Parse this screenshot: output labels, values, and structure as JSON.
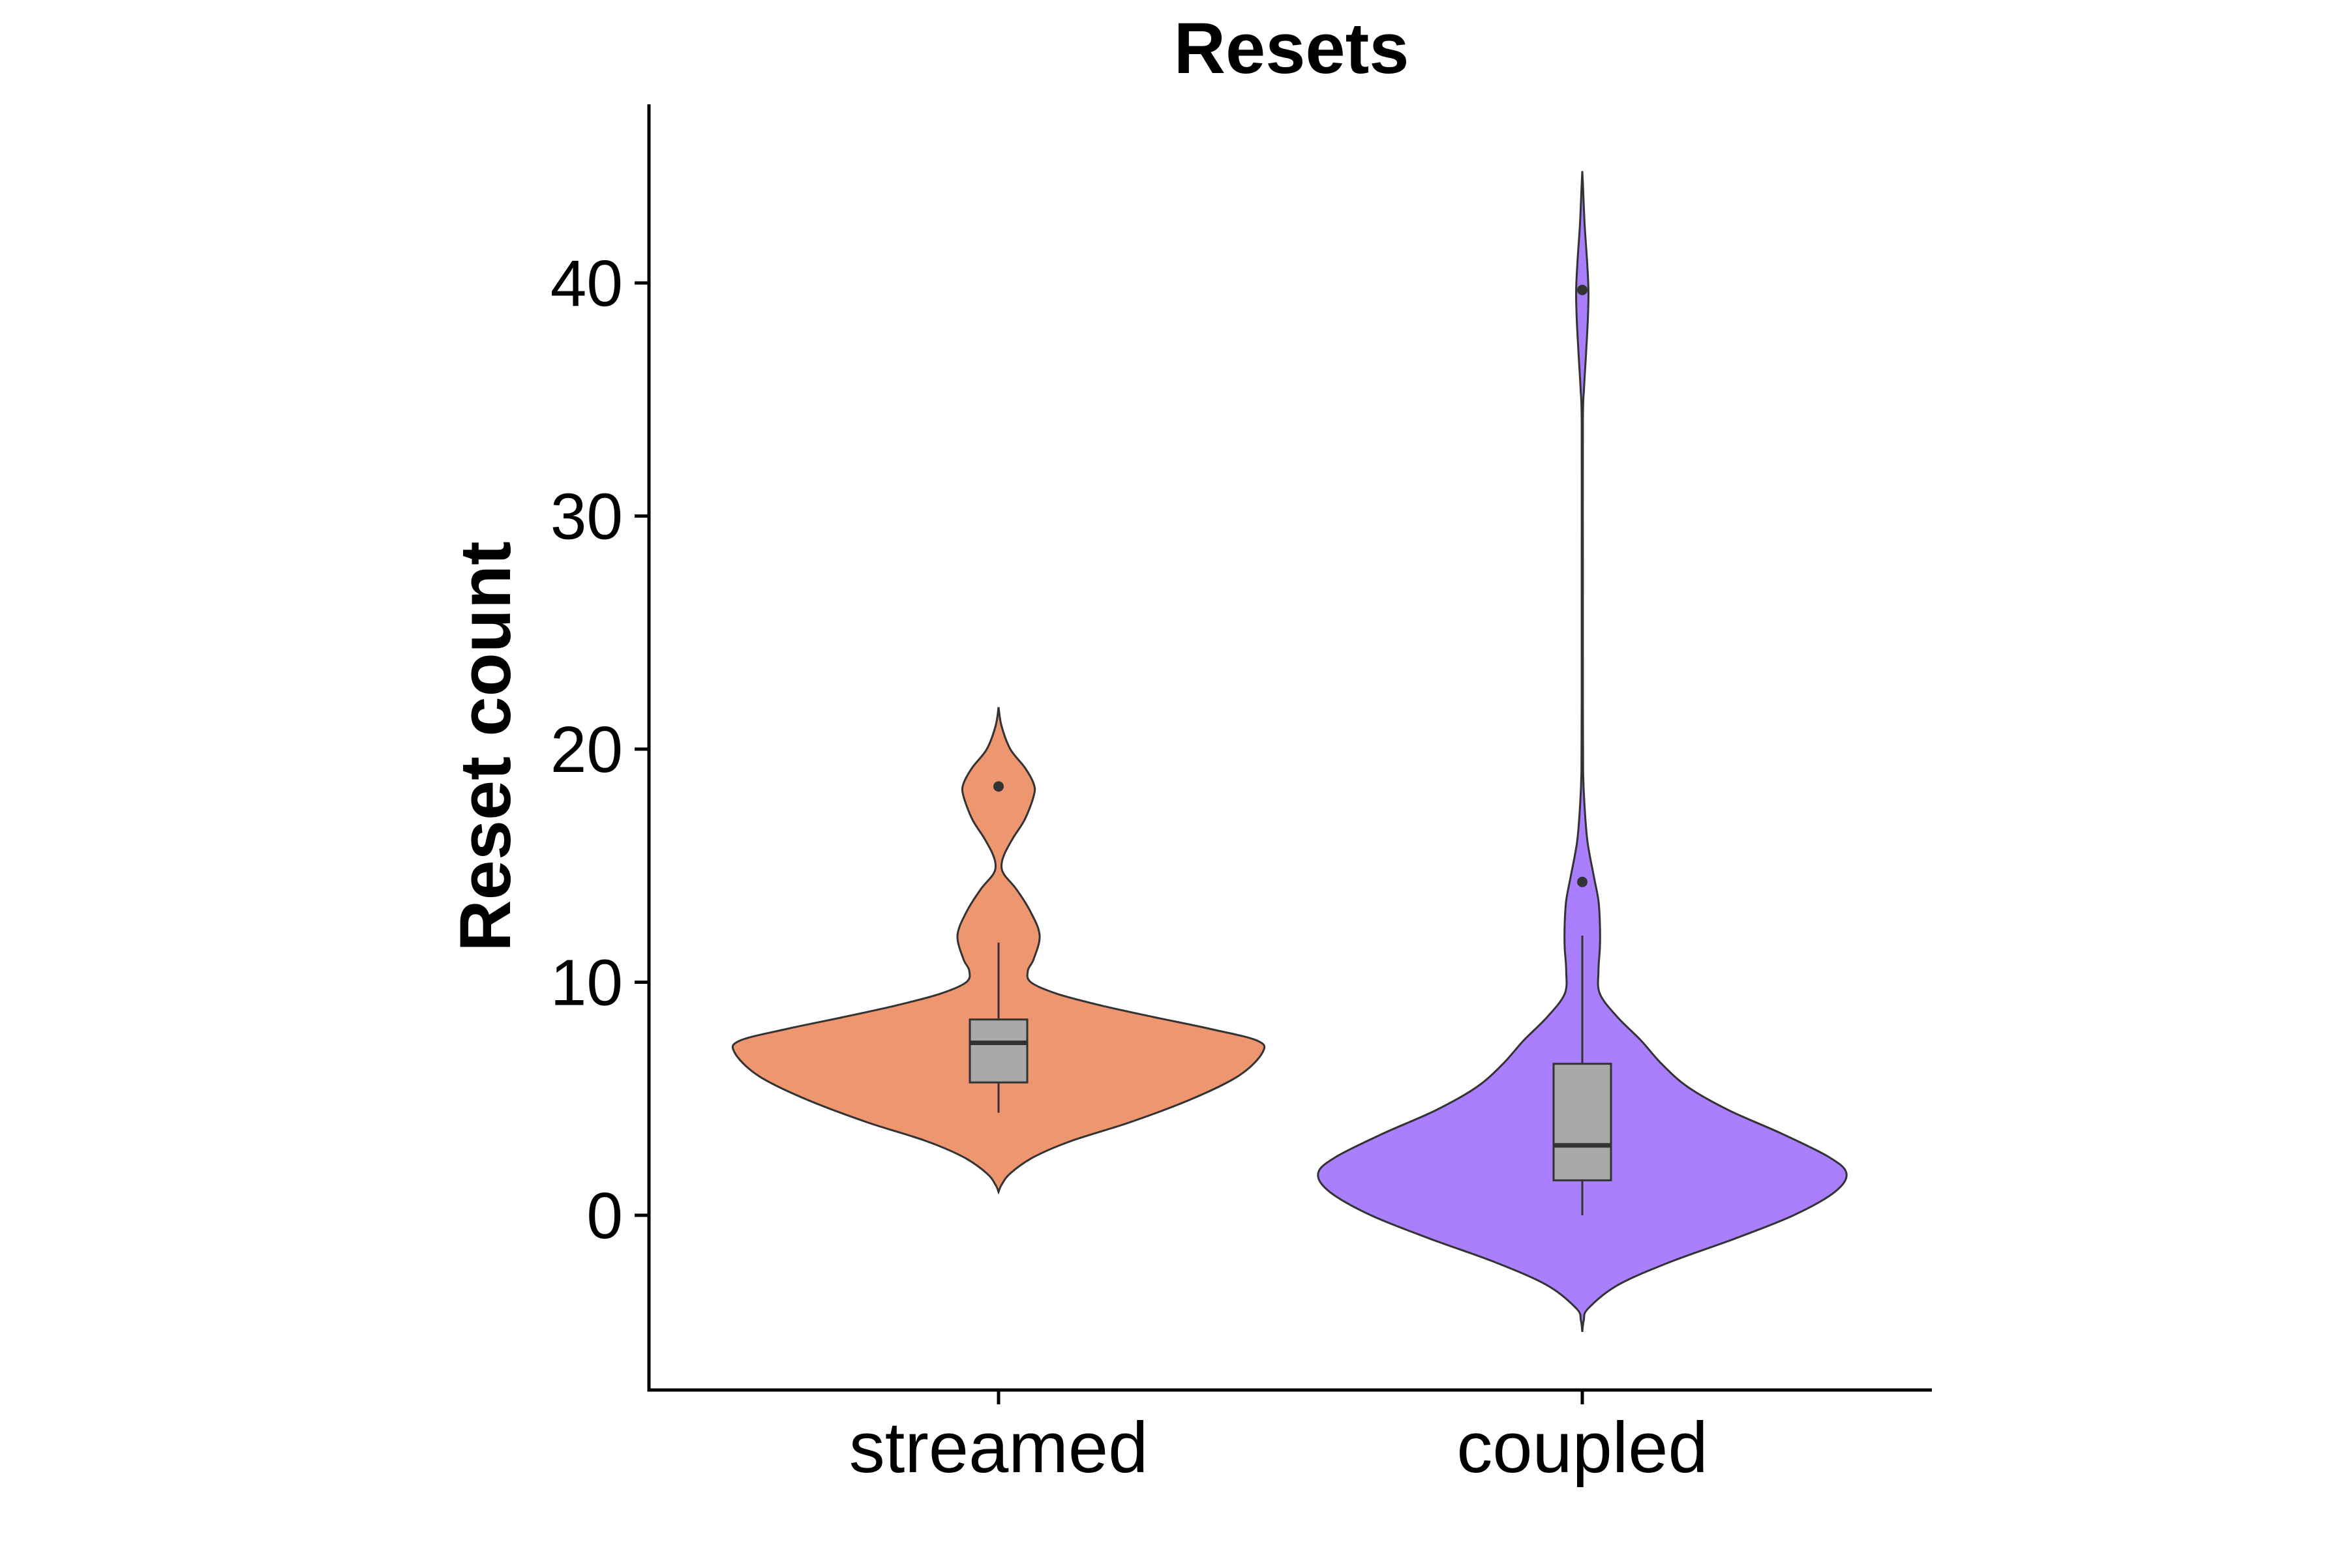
{
  "chart_data": {
    "type": "violin",
    "title": "Resets",
    "xlabel": "",
    "ylabel": "Reset count",
    "ylim": [
      -7.5,
      47.5
    ],
    "yticks": [
      0,
      10,
      20,
      30,
      40
    ],
    "grid": false,
    "legend": "none",
    "categories": [
      "streamed",
      "coupled"
    ],
    "series": [
      {
        "category": "streamed",
        "color": "#EE9670",
        "box": {
          "whisker_low": 4.4,
          "q1": 5.7,
          "median": 7.4,
          "q3": 8.4,
          "whisker_high": 11.7
        },
        "outliers": [
          18.4
        ],
        "violin_profile": [
          [
            1.0,
            0.0
          ],
          [
            1.3,
            0.01
          ],
          [
            1.8,
            0.04
          ],
          [
            2.5,
            0.12
          ],
          [
            3.2,
            0.25
          ],
          [
            4.0,
            0.45
          ],
          [
            5.0,
            0.66
          ],
          [
            6.0,
            0.82
          ],
          [
            7.0,
            0.9
          ],
          [
            7.5,
            0.88
          ],
          [
            8.0,
            0.72
          ],
          [
            8.5,
            0.53
          ],
          [
            9.0,
            0.35
          ],
          [
            9.5,
            0.2
          ],
          [
            10.0,
            0.11
          ],
          [
            10.5,
            0.1
          ],
          [
            11.0,
            0.12
          ],
          [
            12.0,
            0.14
          ],
          [
            13.0,
            0.11
          ],
          [
            14.0,
            0.06
          ],
          [
            14.6,
            0.02
          ],
          [
            15.0,
            0.01
          ],
          [
            15.5,
            0.02
          ],
          [
            16.2,
            0.05
          ],
          [
            17.0,
            0.09
          ],
          [
            18.0,
            0.12
          ],
          [
            18.5,
            0.12
          ],
          [
            19.2,
            0.09
          ],
          [
            20.0,
            0.04
          ],
          [
            21.0,
            0.01
          ],
          [
            21.8,
            0.0
          ]
        ]
      },
      {
        "category": "coupled",
        "color": "#A97FFD",
        "box": {
          "whisker_low": 0,
          "q1": 1.5,
          "median": 3.0,
          "q3": 6.5,
          "whisker_high": 12.0
        },
        "outliers": [
          14.3,
          39.7
        ],
        "violin_profile": [
          [
            -5.0,
            0.0
          ],
          [
            -4.5,
            0.005
          ],
          [
            -4.0,
            0.02
          ],
          [
            -3.0,
            0.12
          ],
          [
            -2.0,
            0.3
          ],
          [
            -1.0,
            0.52
          ],
          [
            0.0,
            0.72
          ],
          [
            1.0,
            0.86
          ],
          [
            1.8,
            0.9
          ],
          [
            2.5,
            0.84
          ],
          [
            3.5,
            0.68
          ],
          [
            4.5,
            0.5
          ],
          [
            5.5,
            0.36
          ],
          [
            6.5,
            0.27
          ],
          [
            7.5,
            0.2
          ],
          [
            8.5,
            0.12
          ],
          [
            9.5,
            0.06
          ],
          [
            10.5,
            0.055
          ],
          [
            11.5,
            0.06
          ],
          [
            12.5,
            0.06
          ],
          [
            13.5,
            0.055
          ],
          [
            14.5,
            0.04
          ],
          [
            16.0,
            0.018
          ],
          [
            17.5,
            0.008
          ],
          [
            19.0,
            0.003
          ],
          [
            22.0,
            0.002
          ],
          [
            28.0,
            0.002
          ],
          [
            34.0,
            0.002
          ],
          [
            35.5,
            0.006
          ],
          [
            37.0,
            0.013
          ],
          [
            38.5,
            0.019
          ],
          [
            39.7,
            0.021
          ],
          [
            41.0,
            0.016
          ],
          [
            42.5,
            0.008
          ],
          [
            44.0,
            0.003
          ],
          [
            44.8,
            0.0
          ]
        ]
      }
    ]
  }
}
